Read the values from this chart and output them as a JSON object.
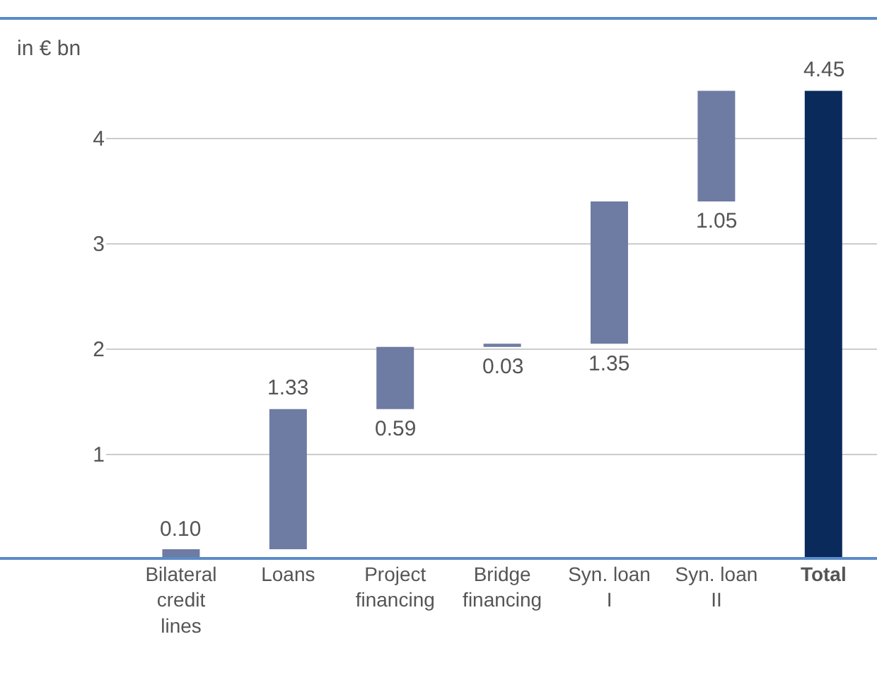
{
  "chart_data": {
    "type": "bar",
    "ylabel": "in € bn",
    "categories": [
      "Bilateral credit lines",
      "Loans",
      "Project financing",
      "Bridge financing",
      "Syn. loan I",
      "Syn. loan II",
      "Total"
    ],
    "values": [
      0.1,
      1.33,
      0.59,
      0.03,
      1.35,
      1.05,
      4.45
    ],
    "base": [
      0,
      0.1,
      1.43,
      2.02,
      2.05,
      3.4,
      0
    ],
    "colors": [
      "#6e7ba3",
      "#6e7ba3",
      "#6e7ba3",
      "#6e7ba3",
      "#6e7ba3",
      "#6e7ba3",
      "#0a2a5c"
    ],
    "value_labels": [
      "0.10",
      "1.33",
      "0.59",
      "0.03",
      "1.35",
      "1.05",
      "4.45"
    ],
    "ylim": [
      0,
      5.15
    ],
    "yticks": [
      1,
      2,
      3,
      4
    ],
    "grid": "y"
  }
}
